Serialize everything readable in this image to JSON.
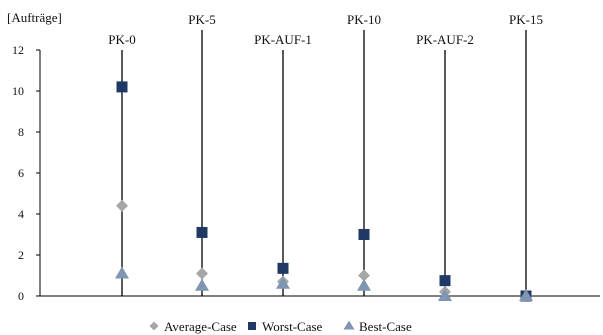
{
  "chart_data": {
    "type": "scatter",
    "ylabel": "[Aufträge]",
    "ylim": [
      0,
      12
    ],
    "yticks": [
      "0",
      "2",
      "4",
      "6",
      "8",
      "10",
      "12"
    ],
    "grid": false,
    "legend_position": "bottom",
    "categories": [
      "PK-0",
      "PK-5",
      "PK-AUF-1",
      "PK-10",
      "PK-AUF-2",
      "PK-15"
    ],
    "series": [
      {
        "name": "Average-Case",
        "marker": "diamond",
        "color": "#a6a6a6",
        "values": [
          4.4,
          1.1,
          0.7,
          1.0,
          0.2,
          0.0
        ]
      },
      {
        "name": "Worst-Case",
        "marker": "square",
        "color": "#1f3864",
        "values": [
          10.2,
          3.1,
          1.35,
          3.0,
          0.75,
          0.0
        ]
      },
      {
        "name": "Best-Case",
        "marker": "triangle",
        "color": "#7f96b2",
        "values": [
          1.1,
          0.5,
          0.6,
          0.5,
          0.0,
          0.0
        ]
      }
    ]
  }
}
